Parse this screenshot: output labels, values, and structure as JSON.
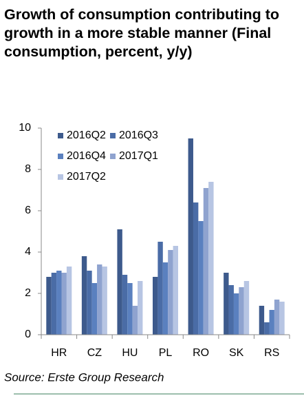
{
  "chart_data": {
    "type": "bar",
    "title": "Growth of consumption contributing to growth in a more stable manner (Final consumption, percent, y/y)",
    "source": "Source: Erste Group Research",
    "categories": [
      "HR",
      "CZ",
      "HU",
      "PL",
      "RO",
      "SK",
      "RS"
    ],
    "series": [
      {
        "name": "2016Q2",
        "color": "#3d5a8c",
        "values": [
          2.8,
          3.8,
          5.1,
          2.8,
          9.5,
          3.0,
          1.4
        ]
      },
      {
        "name": "2016Q3",
        "color": "#4a6ca6",
        "values": [
          3.0,
          3.1,
          2.9,
          4.5,
          6.4,
          2.4,
          0.6
        ]
      },
      {
        "name": "2016Q4",
        "color": "#5a80bf",
        "values": [
          3.1,
          2.5,
          2.5,
          3.5,
          5.5,
          2.0,
          1.2
        ]
      },
      {
        "name": "2017Q1",
        "color": "#8fa3cf",
        "values": [
          3.0,
          3.4,
          1.4,
          4.1,
          7.1,
          2.3,
          1.7
        ]
      },
      {
        "name": "2017Q2",
        "color": "#b7c5e3",
        "values": [
          3.3,
          3.3,
          2.6,
          4.3,
          7.4,
          2.6,
          1.6
        ]
      }
    ],
    "ylim": [
      0,
      10
    ],
    "yticks": [
      0,
      2,
      4,
      6,
      8,
      10
    ],
    "grid": false,
    "legend": "top-left"
  }
}
